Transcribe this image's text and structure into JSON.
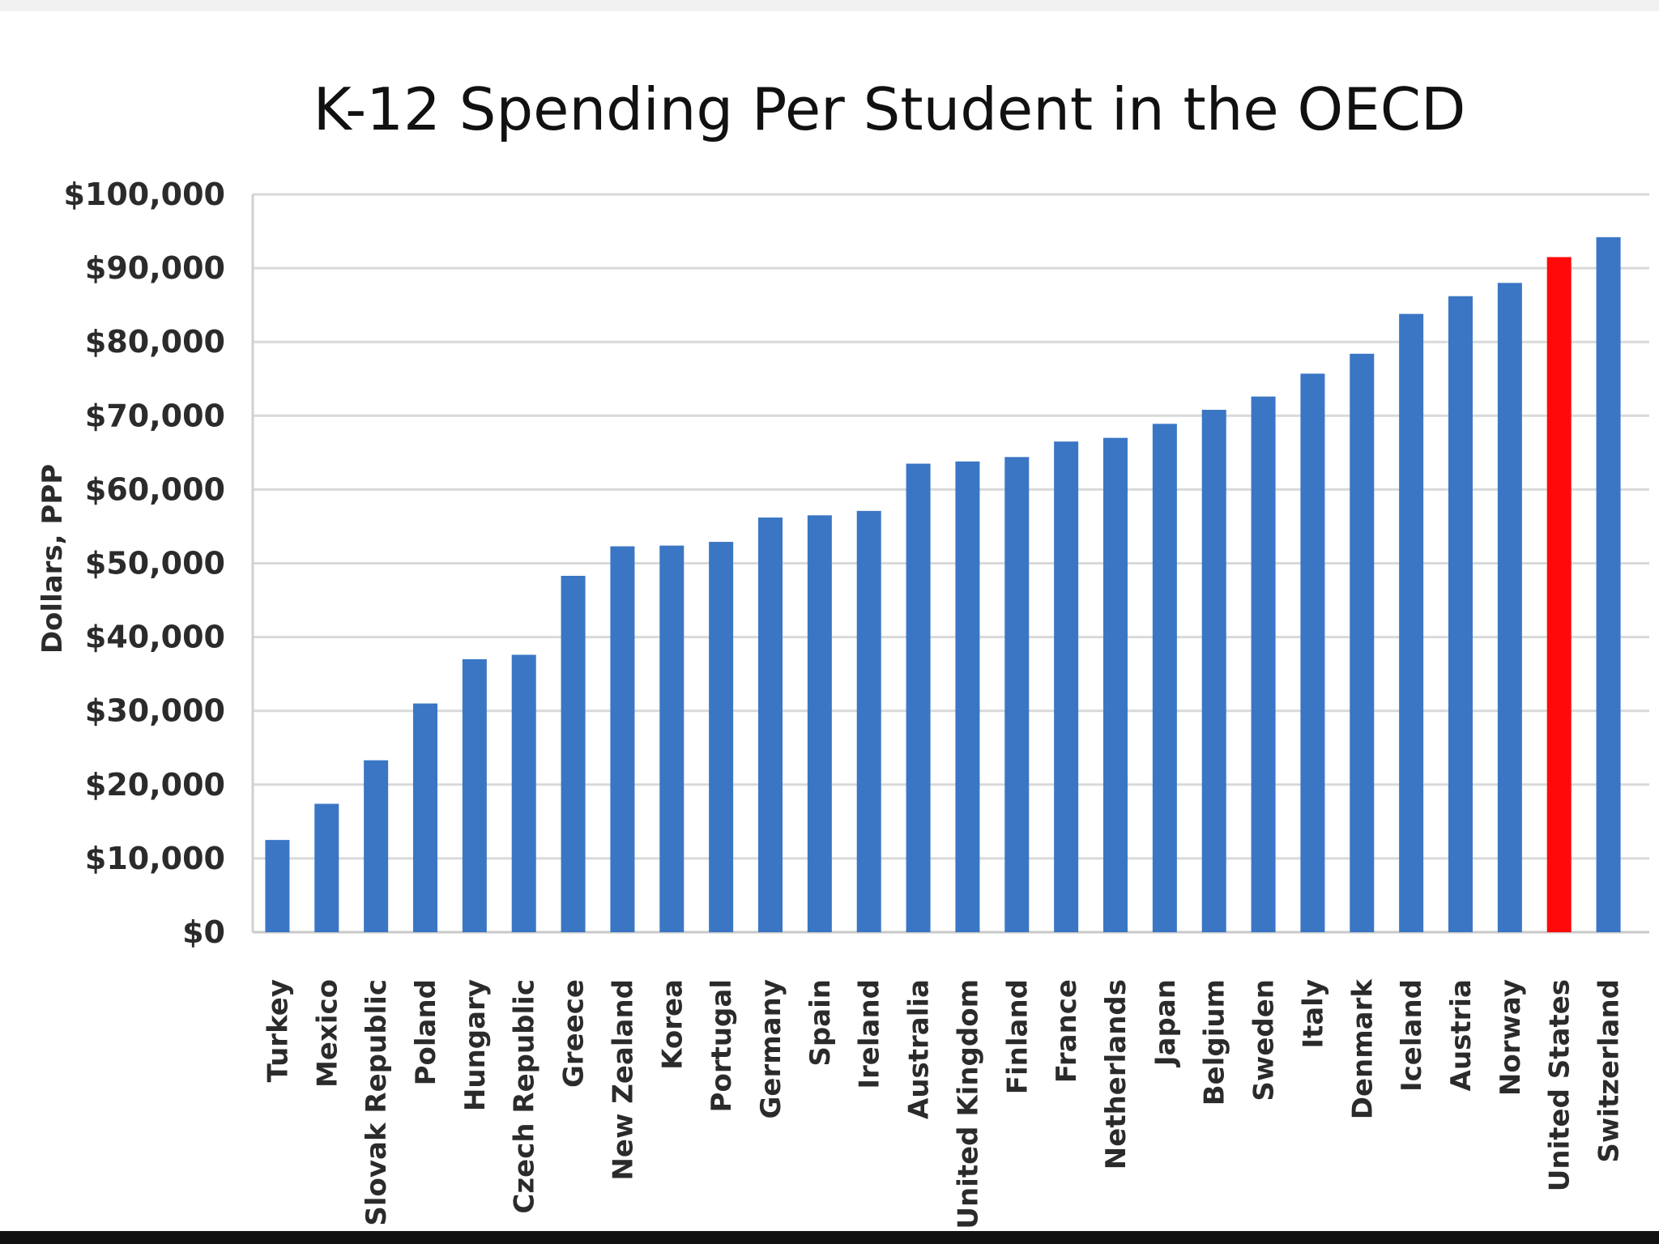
{
  "chart_data": {
    "type": "bar",
    "title": "K-12 Spending Per Student in the OECD",
    "xlabel": "",
    "ylabel": "Dollars, PPP",
    "ylim": [
      0,
      100000
    ],
    "yticks": [
      0,
      10000,
      20000,
      30000,
      40000,
      50000,
      60000,
      70000,
      80000,
      90000,
      100000
    ],
    "ytick_labels": [
      "$0",
      "$10,000",
      "$20,000",
      "$30,000",
      "$40,000",
      "$50,000",
      "$60,000",
      "$70,000",
      "$80,000",
      "$90,000",
      "$100,000"
    ],
    "grid": true,
    "legend": "none",
    "bar_color": "#3a76c4",
    "highlight_color": "#ff0a0a",
    "highlight_category": "United States",
    "categories": [
      "Turkey",
      "Mexico",
      "Slovak Republic",
      "Poland",
      "Hungary",
      "Czech Republic",
      "Greece",
      "New Zealand",
      "Korea",
      "Portugal",
      "Germany",
      "Spain",
      "Ireland",
      "Australia",
      "United Kingdom",
      "Finland",
      "France",
      "Netherlands",
      "Japan",
      "Belgium",
      "Sweden",
      "Italy",
      "Denmark",
      "Iceland",
      "Austria",
      "Norway",
      "United States",
      "Switzerland"
    ],
    "values": [
      12500,
      17400,
      23300,
      31000,
      37000,
      37600,
      48300,
      52300,
      52400,
      52900,
      56200,
      56500,
      57100,
      63500,
      63800,
      64400,
      66500,
      67000,
      68900,
      70800,
      72600,
      75700,
      78400,
      83800,
      86200,
      88000,
      91500,
      94200
    ]
  }
}
